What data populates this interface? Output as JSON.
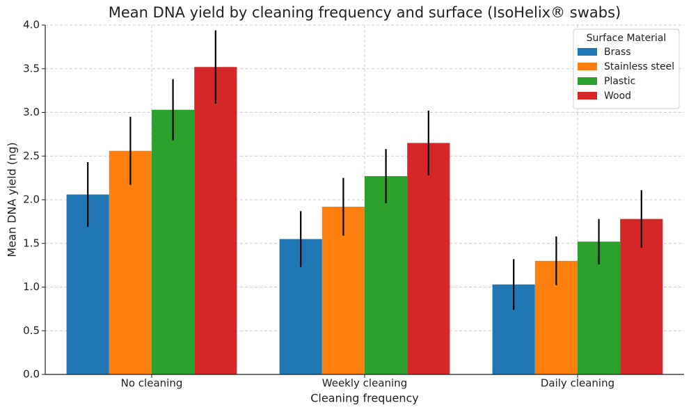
{
  "chart_data": {
    "type": "bar",
    "title": "Mean DNA yield by cleaning frequency and surface (IsoHelix® swabs)",
    "x_label": "Cleaning frequency",
    "y_label": "Mean DNA yield (ng)",
    "categories": [
      "No cleaning",
      "Weekly cleaning",
      "Daily cleaning"
    ],
    "series": [
      {
        "name": "Brass",
        "color": "#1f77b4",
        "values": [
          2.06,
          1.55,
          1.03
        ],
        "errors": [
          0.37,
          0.32,
          0.29
        ]
      },
      {
        "name": "Stainless steel",
        "color": "#ff7f0e",
        "values": [
          2.56,
          1.92,
          1.3
        ],
        "errors": [
          0.39,
          0.33,
          0.28
        ]
      },
      {
        "name": "Plastic",
        "color": "#2ca02c",
        "values": [
          3.03,
          2.27,
          1.52
        ],
        "errors": [
          0.35,
          0.31,
          0.26
        ]
      },
      {
        "name": "Wood",
        "color": "#d62728",
        "values": [
          3.52,
          2.65,
          1.78
        ],
        "errors": [
          0.42,
          0.37,
          0.33
        ]
      }
    ],
    "ylim": [
      0,
      4.0
    ],
    "yticks": [
      {
        "value": 0,
        "label": "0.0"
      },
      0.5,
      {
        "value": 1,
        "label": "1.0"
      },
      1.5,
      {
        "value": 2,
        "label": "2.0"
      },
      2.5,
      {
        "value": 3,
        "label": "3.0"
      },
      3.5,
      {
        "value": 4,
        "label": "4.0"
      }
    ],
    "grid": true,
    "legend_title": "Surface Material",
    "legend_position": "upper right"
  }
}
